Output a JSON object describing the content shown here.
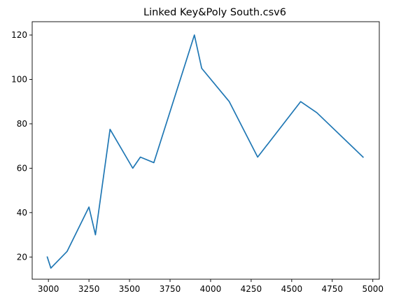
{
  "chart_data": {
    "type": "line",
    "title": "Linked Key&Poly South.csv6",
    "xlabel": "",
    "ylabel": "",
    "xlim": [
      2900,
      5040
    ],
    "ylim": [
      10,
      126
    ],
    "xticks": [
      3000,
      3250,
      3500,
      3750,
      4000,
      4250,
      4500,
      4750,
      5000
    ],
    "yticks": [
      20,
      40,
      60,
      80,
      100,
      120
    ],
    "grid": false,
    "legend": "none",
    "series": [
      {
        "color": "#1f77b4",
        "x": [
          2993,
          3015,
          3115,
          3250,
          3290,
          3380,
          3520,
          3567,
          3650,
          3900,
          3945,
          4115,
          4290,
          4555,
          4655,
          4940
        ],
        "y": [
          20,
          15,
          22.5,
          42.5,
          30,
          77.5,
          60,
          65,
          62.5,
          120,
          105,
          90,
          65,
          90,
          85,
          65
        ]
      }
    ]
  }
}
